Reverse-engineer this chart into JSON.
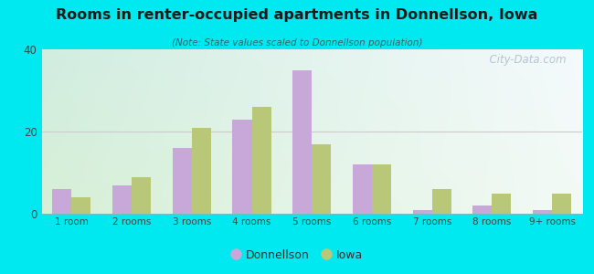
{
  "title": "Rooms in renter-occupied apartments in Donnellson, Iowa",
  "subtitle": "(Note: State values scaled to Donnellson population)",
  "categories": [
    "1 room",
    "2 rooms",
    "3 rooms",
    "4 rooms",
    "5 rooms",
    "6 rooms",
    "7 rooms",
    "8 rooms",
    "9+ rooms"
  ],
  "donnellson_values": [
    6,
    7,
    16,
    23,
    35,
    12,
    1,
    2,
    1
  ],
  "iowa_values": [
    4,
    9,
    21,
    26,
    17,
    12,
    6,
    5,
    5
  ],
  "donnellson_color": "#c8a8d8",
  "iowa_color": "#b8c878",
  "ylim": [
    0,
    40
  ],
  "yticks": [
    0,
    20,
    40
  ],
  "background_color": "#00e8f0",
  "bar_width": 0.32,
  "legend_labels": [
    "Donnellson",
    "Iowa"
  ],
  "watermark": "  City-Data.com"
}
